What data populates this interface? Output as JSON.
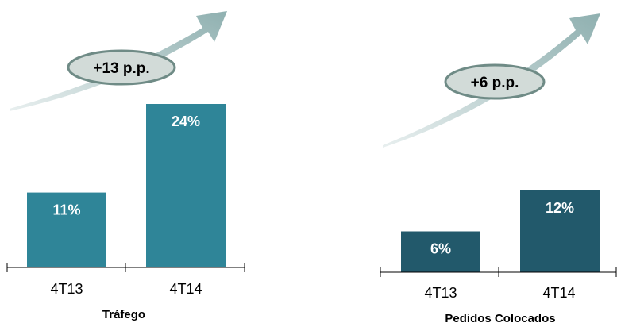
{
  "chart_data": [
    {
      "type": "bar",
      "title": "Tráfego",
      "categories": [
        "4T13",
        "4T14"
      ],
      "values": [
        11,
        24
      ],
      "value_labels": [
        "11%",
        "24%"
      ],
      "ylim": [
        0,
        24
      ],
      "grid": false,
      "legend": "none",
      "bar_color": "#2F8598",
      "annotation": "+13 p.p."
    },
    {
      "type": "bar",
      "title": "Pedidos Colocados",
      "categories": [
        "4T13",
        "4T14"
      ],
      "values": [
        6,
        12
      ],
      "value_labels": [
        "6%",
        "12%"
      ],
      "ylim": [
        0,
        24
      ],
      "grid": false,
      "legend": "none",
      "bar_color": "#22596B",
      "annotation": "+6 p.p."
    }
  ],
  "colors": {
    "arrow_light": "#E8EFEF",
    "arrow_dark": "#8FB0B0",
    "badge_fill": "#D2DBD8",
    "badge_stroke": "#6F8B86"
  }
}
